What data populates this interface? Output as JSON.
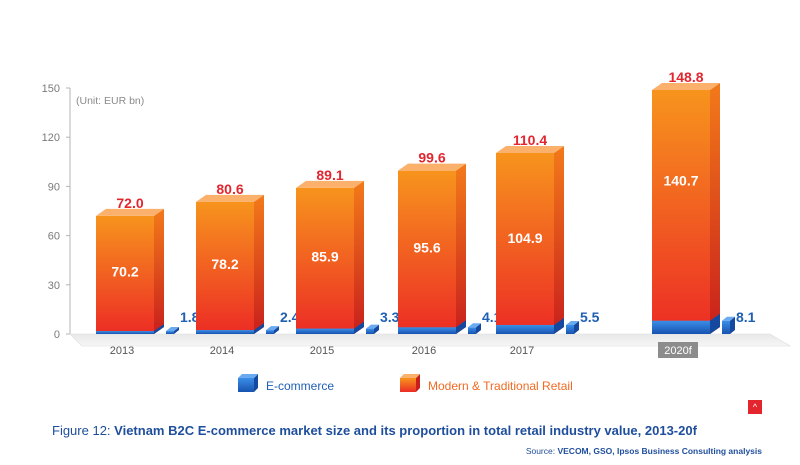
{
  "colors": {
    "ecommerce": "#1f6fd1",
    "retail": "#f26a21",
    "total_label": "#e3262e",
    "ecom_label": "#1f5fb4"
  },
  "chart_data": {
    "type": "bar",
    "stacked": true,
    "style": "3d",
    "unit_label": "(Unit: EUR bn)",
    "categories": [
      "2013",
      "2014",
      "2015",
      "2016",
      "2017",
      "2020f"
    ],
    "totals": [
      72.0,
      80.6,
      89.1,
      99.6,
      110.4,
      148.8
    ],
    "series": [
      {
        "name": "E-commerce",
        "values": [
          1.8,
          2.4,
          3.3,
          4.1,
          5.5,
          8.1
        ]
      },
      {
        "name": "Modern & Traditional Retail",
        "values": [
          70.2,
          78.2,
          85.9,
          95.6,
          104.9,
          140.7
        ]
      }
    ],
    "yticks": [
      0,
      30,
      60,
      90,
      120,
      150
    ],
    "ylim": [
      0,
      150
    ],
    "grid": false,
    "legend_position": "bottom",
    "highlighted_category": "2020f"
  },
  "caption": {
    "prefix": "Figure 12: ",
    "title": "Vietnam B2C E-commerce market size and its proportion in total retail industry value, 2013-20f"
  },
  "source": {
    "prefix": "Source: ",
    "text": "VECOM, GSO, Ipsos Business Consulting analysis"
  },
  "corner_icon": "^"
}
